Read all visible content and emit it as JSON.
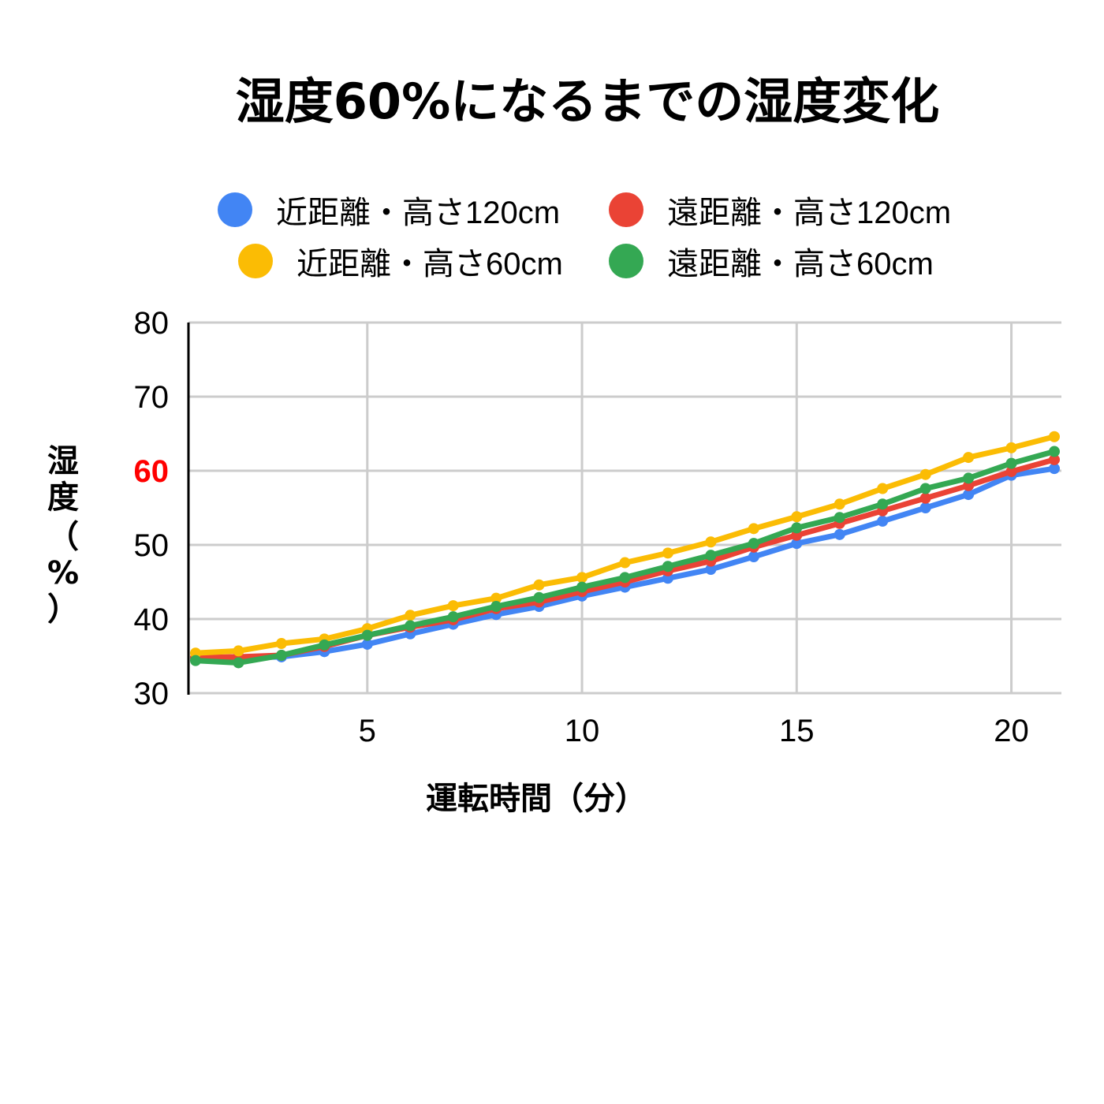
{
  "chart_data": {
    "type": "line",
    "title": "湿度60%になるまでの湿度変化",
    "xlabel": "運転時間（分）",
    "ylabel": "湿度（%）",
    "xlim": [
      1,
      21
    ],
    "ylim": [
      30,
      80
    ],
    "x_ticks": [
      5,
      10,
      15,
      20
    ],
    "y_ticks": [
      30,
      40,
      50,
      60,
      70,
      80
    ],
    "highlighted_y_tick": {
      "value": 60,
      "color": "#ff0000"
    },
    "grid": true,
    "legend_position": "top",
    "x": [
      1,
      2,
      3,
      4,
      5,
      6,
      7,
      8,
      9,
      10,
      11,
      12,
      13,
      14,
      15,
      16,
      17,
      18,
      19,
      20,
      21
    ],
    "series": [
      {
        "name": "近距離・高さ120cm",
        "color": "#4285f4",
        "values": [
          34.8,
          34.8,
          34.9,
          35.6,
          36.6,
          38.0,
          39.3,
          40.6,
          41.7,
          43.1,
          44.3,
          45.5,
          46.7,
          48.4,
          50.2,
          51.4,
          53.2,
          55.0,
          56.8,
          59.4,
          60.3
        ]
      },
      {
        "name": "遠距離・高さ120cm",
        "color": "#ea4335",
        "values": [
          34.8,
          34.9,
          35.1,
          36.3,
          37.8,
          38.9,
          39.9,
          41.4,
          42.3,
          43.7,
          45.0,
          46.5,
          47.8,
          49.7,
          51.3,
          52.9,
          54.6,
          56.3,
          58.0,
          59.9,
          61.5
        ]
      },
      {
        "name": "近距離・高さ60cm",
        "color": "#fbbc04",
        "values": [
          35.4,
          35.7,
          36.7,
          37.3,
          38.7,
          40.5,
          41.8,
          42.8,
          44.6,
          45.6,
          47.6,
          48.9,
          50.4,
          52.2,
          53.8,
          55.5,
          57.6,
          59.5,
          61.8,
          63.1,
          64.6
        ]
      },
      {
        "name": "遠距離・高さ60cm",
        "color": "#34a853",
        "values": [
          34.4,
          34.1,
          35.1,
          36.5,
          37.8,
          39.1,
          40.3,
          41.7,
          42.9,
          44.3,
          45.6,
          47.1,
          48.6,
          50.2,
          52.3,
          53.7,
          55.5,
          57.6,
          59.0,
          61.0,
          62.6
        ]
      }
    ]
  },
  "ylabel_chars": [
    "湿",
    "度",
    "（",
    "%",
    "）"
  ]
}
